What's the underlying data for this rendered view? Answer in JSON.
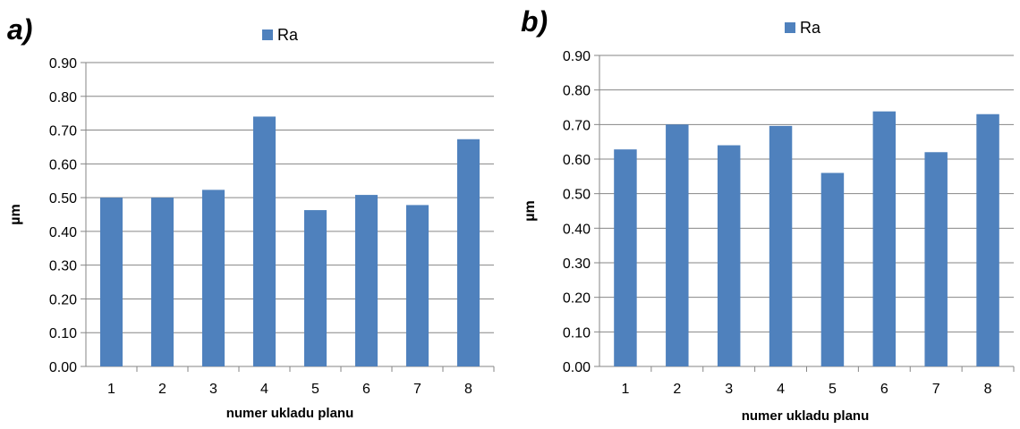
{
  "chart_data": [
    {
      "type": "bar",
      "panel_label": "a)",
      "categories": [
        "1",
        "2",
        "3",
        "4",
        "5",
        "6",
        "7",
        "8"
      ],
      "series": [
        {
          "name": "Ra",
          "values": [
            0.5,
            0.5,
            0.523,
            0.74,
            0.463,
            0.508,
            0.478,
            0.673
          ]
        }
      ],
      "xlabel": "numer ukladu planu",
      "ylabel": "µm",
      "ylim": [
        0,
        0.9
      ],
      "yticks": [
        "0.00",
        "0.10",
        "0.20",
        "0.30",
        "0.40",
        "0.50",
        "0.60",
        "0.70",
        "0.80",
        "0.90"
      ],
      "grid": true,
      "legend_placement": "top",
      "bar_color": "#4f81bd"
    },
    {
      "type": "bar",
      "panel_label": "b)",
      "categories": [
        "1",
        "2",
        "3",
        "4",
        "5",
        "6",
        "7",
        "8"
      ],
      "series": [
        {
          "name": "Ra",
          "values": [
            0.628,
            0.7,
            0.64,
            0.696,
            0.56,
            0.738,
            0.62,
            0.73
          ]
        }
      ],
      "xlabel": "numer ukladu planu",
      "ylabel": "µm",
      "ylim": [
        0,
        0.9
      ],
      "yticks": [
        "0.00",
        "0.10",
        "0.20",
        "0.30",
        "0.40",
        "0.50",
        "0.60",
        "0.70",
        "0.80",
        "0.90"
      ],
      "grid": true,
      "legend_placement": "top",
      "bar_color": "#4f81bd"
    }
  ]
}
